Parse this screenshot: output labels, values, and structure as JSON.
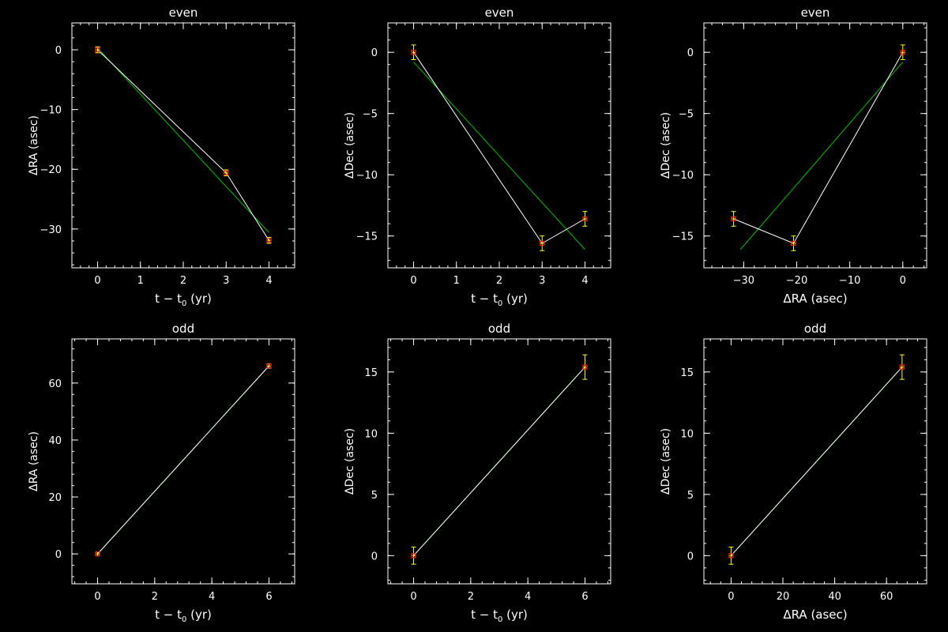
{
  "figure": {
    "background": "#000000",
    "axes_color": "#ffffff",
    "raw_line_color": "#ffffff",
    "fit_line_color": "#00c000",
    "errorbar_color": "#ffff00",
    "marker_color": "#ff2020"
  },
  "chart_data": [
    {
      "type": "line",
      "title": "even",
      "xlabel": "t − t",
      "xlabel_sub": "0",
      "xlabel_tail": " (yr)",
      "ylabel": "ΔRA (asec)",
      "xlim": [
        -0.6,
        4.6
      ],
      "ylim": [
        -36.5,
        4.5
      ],
      "xticks": [
        0,
        1,
        2,
        3,
        4
      ],
      "xtick_labels": [
        "0",
        "1",
        "2",
        "3",
        "4"
      ],
      "xminor": 0.2,
      "yticks": [
        -30,
        -20,
        -10,
        0
      ],
      "ytick_labels": [
        "−30",
        "−20",
        "−10",
        "0"
      ],
      "yminor": 2,
      "points": [
        {
          "x": 0,
          "y": 0,
          "xerr": 0.05,
          "yerr": 0.5
        },
        {
          "x": 3,
          "y": -20.6,
          "xerr": 0.05,
          "yerr": 0.5
        },
        {
          "x": 4,
          "y": -31.9,
          "xerr": 0.05,
          "yerr": 0.5
        }
      ],
      "fit": [
        [
          0,
          0.3
        ],
        [
          4,
          -30.6
        ]
      ]
    },
    {
      "type": "line",
      "title": "even",
      "xlabel": "t − t",
      "xlabel_sub": "0",
      "xlabel_tail": " (yr)",
      "ylabel": "ΔDec (asec)",
      "xlim": [
        -0.6,
        4.6
      ],
      "ylim": [
        -17.6,
        2.4
      ],
      "xticks": [
        0,
        1,
        2,
        3,
        4
      ],
      "xtick_labels": [
        "0",
        "1",
        "2",
        "3",
        "4"
      ],
      "xminor": 0.2,
      "yticks": [
        -15,
        -10,
        -5,
        0
      ],
      "ytick_labels": [
        "−15",
        "−10",
        "−5",
        "0"
      ],
      "yminor": 1,
      "points": [
        {
          "x": 0,
          "y": 0,
          "xerr": 0.05,
          "yerr": 0.6
        },
        {
          "x": 3,
          "y": -15.6,
          "xerr": 0.05,
          "yerr": 0.6
        },
        {
          "x": 4,
          "y": -13.6,
          "xerr": 0.05,
          "yerr": 0.6
        }
      ],
      "fit": [
        [
          0,
          -0.8
        ],
        [
          4,
          -16.1
        ]
      ]
    },
    {
      "type": "line",
      "title": "even",
      "xlabel": "ΔRA (asec)",
      "xlabel_sub": "",
      "xlabel_tail": "",
      "ylabel": "ΔDec (asec)",
      "xlim": [
        -37.5,
        4.5
      ],
      "ylim": [
        -17.6,
        2.4
      ],
      "xticks": [
        -30,
        -20,
        -10,
        0
      ],
      "xtick_labels": [
        "−30",
        "−20",
        "−10",
        "0"
      ],
      "xminor": 2,
      "yticks": [
        -15,
        -10,
        -5,
        0
      ],
      "ytick_labels": [
        "−15",
        "−10",
        "−5",
        "0"
      ],
      "yminor": 1,
      "points": [
        {
          "x": 0,
          "y": 0,
          "xerr": 0.5,
          "yerr": 0.6
        },
        {
          "x": -20.6,
          "y": -15.6,
          "xerr": 0.5,
          "yerr": 0.6
        },
        {
          "x": -31.9,
          "y": -13.6,
          "xerr": 0.5,
          "yerr": 0.6
        }
      ],
      "fit": [
        [
          0,
          -0.8
        ],
        [
          -30.6,
          -16.1
        ]
      ]
    },
    {
      "type": "line",
      "title": "odd",
      "xlabel": "t − t",
      "xlabel_sub": "0",
      "xlabel_tail": " (yr)",
      "ylabel": "ΔRA (asec)",
      "xlim": [
        -0.9,
        6.9
      ],
      "ylim": [
        -10.5,
        75.5
      ],
      "xticks": [
        0,
        2,
        4,
        6
      ],
      "xtick_labels": [
        "0",
        "2",
        "4",
        "6"
      ],
      "xminor": 0.4,
      "yticks": [
        0,
        20,
        40,
        60
      ],
      "ytick_labels": [
        "0",
        "20",
        "40",
        "60"
      ],
      "yminor": 4,
      "points": [
        {
          "x": 0,
          "y": 0,
          "xerr": 0.07,
          "yerr": 0.6
        },
        {
          "x": 6,
          "y": 66,
          "xerr": 0.07,
          "yerr": 0.8
        }
      ],
      "fit": [
        [
          0,
          0
        ],
        [
          6,
          66
        ]
      ]
    },
    {
      "type": "line",
      "title": "odd",
      "xlabel": "t − t",
      "xlabel_sub": "0",
      "xlabel_tail": " (yr)",
      "ylabel": "ΔDec (asec)",
      "xlim": [
        -0.9,
        6.9
      ],
      "ylim": [
        -2.3,
        17.7
      ],
      "xticks": [
        0,
        2,
        4,
        6
      ],
      "xtick_labels": [
        "0",
        "2",
        "4",
        "6"
      ],
      "xminor": 0.4,
      "yticks": [
        0,
        5,
        10,
        15
      ],
      "ytick_labels": [
        "0",
        "5",
        "10",
        "15"
      ],
      "yminor": 1,
      "points": [
        {
          "x": 0,
          "y": 0,
          "xerr": 0.07,
          "yerr": 0.7
        },
        {
          "x": 6,
          "y": 15.4,
          "xerr": 0.07,
          "yerr": 1.0
        }
      ],
      "fit": [
        [
          0,
          0
        ],
        [
          6,
          15.4
        ]
      ]
    },
    {
      "type": "line",
      "title": "odd",
      "xlabel": "ΔRA (asec)",
      "xlabel_sub": "",
      "xlabel_tail": "",
      "ylabel": "ΔDec (asec)",
      "xlim": [
        -10.5,
        75.5
      ],
      "ylim": [
        -2.3,
        17.7
      ],
      "xticks": [
        0,
        20,
        40,
        60
      ],
      "xtick_labels": [
        "0",
        "20",
        "40",
        "60"
      ],
      "xminor": 4,
      "yticks": [
        0,
        5,
        10,
        15
      ],
      "ytick_labels": [
        "0",
        "5",
        "10",
        "15"
      ],
      "yminor": 1,
      "points": [
        {
          "x": 0,
          "y": 0,
          "xerr": 0.6,
          "yerr": 0.7
        },
        {
          "x": 66,
          "y": 15.4,
          "xerr": 0.8,
          "yerr": 1.0
        }
      ],
      "fit": [
        [
          0,
          0
        ],
        [
          66,
          15.4
        ]
      ]
    }
  ]
}
